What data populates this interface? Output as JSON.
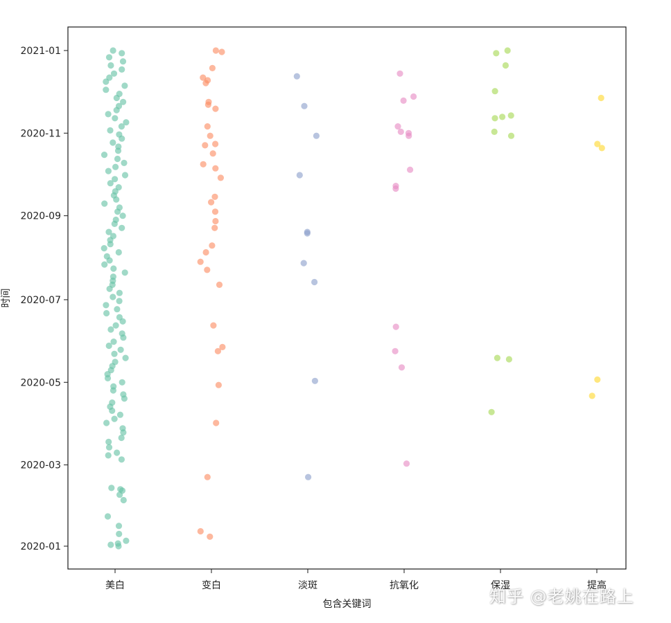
{
  "chart_data": {
    "type": "scatter",
    "subtype": "strip",
    "title": "",
    "xlabel": "包含关键词",
    "ylabel": "时间",
    "categories": [
      "美白",
      "变白",
      "淡斑",
      "抗氧化",
      "保湿",
      "提高"
    ],
    "colors": [
      "#66c2a5",
      "#fc8d62",
      "#8da0cb",
      "#e78ac3",
      "#a6d854",
      "#ffd92f"
    ],
    "y_axis": {
      "type": "date",
      "ticks": [
        "2020-01",
        "2020-03",
        "2020-05",
        "2020-07",
        "2020-09",
        "2020-11",
        "2021-01"
      ],
      "range": [
        "2019-12-15",
        "2021-01-24"
      ]
    },
    "grid": false,
    "legend": "none",
    "series": [
      {
        "category": "美白",
        "dates": [
          "2020-01-01",
          "2020-01-02",
          "2020-01-03",
          "2020-01-05",
          "2020-01-10",
          "2020-01-16",
          "2020-01-23",
          "2020-02-04",
          "2020-02-08",
          "2020-02-11",
          "2020-02-12",
          "2020-02-13",
          "2020-03-05",
          "2020-03-08",
          "2020-03-10",
          "2020-03-14",
          "2020-03-18",
          "2020-03-21",
          "2020-03-25",
          "2020-03-28",
          "2020-04-01",
          "2020-04-04",
          "2020-04-07",
          "2020-04-10",
          "2020-04-13",
          "2020-04-16",
          "2020-04-19",
          "2020-04-22",
          "2020-04-25",
          "2020-04-28",
          "2020-05-01",
          "2020-05-04",
          "2020-05-07",
          "2020-05-10",
          "2020-05-13",
          "2020-05-16",
          "2020-05-19",
          "2020-05-22",
          "2020-05-25",
          "2020-05-28",
          "2020-05-31",
          "2020-06-03",
          "2020-06-06",
          "2020-06-09",
          "2020-06-12",
          "2020-06-15",
          "2020-06-18",
          "2020-06-21",
          "2020-06-24",
          "2020-06-27",
          "2020-06-30",
          "2020-07-03",
          "2020-07-06",
          "2020-07-09",
          "2020-07-12",
          "2020-07-15",
          "2020-07-18",
          "2020-07-21",
          "2020-07-24",
          "2020-07-27",
          "2020-07-30",
          "2020-08-02",
          "2020-08-05",
          "2020-08-08",
          "2020-08-11",
          "2020-08-14",
          "2020-08-17",
          "2020-08-20",
          "2020-08-23",
          "2020-08-26",
          "2020-08-29",
          "2020-09-01",
          "2020-09-04",
          "2020-09-07",
          "2020-09-10",
          "2020-09-13",
          "2020-09-16",
          "2020-09-19",
          "2020-09-22",
          "2020-09-25",
          "2020-09-28",
          "2020-10-01",
          "2020-10-04",
          "2020-10-07",
          "2020-10-10",
          "2020-10-13",
          "2020-10-16",
          "2020-10-19",
          "2020-10-22",
          "2020-10-25",
          "2020-10-28",
          "2020-10-31",
          "2020-11-03",
          "2020-11-06",
          "2020-11-09",
          "2020-11-12",
          "2020-11-15",
          "2020-11-18",
          "2020-11-21",
          "2020-11-24",
          "2020-11-27",
          "2020-11-30",
          "2020-12-03",
          "2020-12-06",
          "2020-12-09",
          "2020-12-12",
          "2020-12-15",
          "2020-12-18",
          "2020-12-21",
          "2020-12-24",
          "2020-12-27",
          "2020-12-30",
          "2021-01-01"
        ]
      },
      {
        "category": "变白",
        "dates": [
          "2020-01-08",
          "2020-01-12",
          "2020-02-21",
          "2020-04-01",
          "2020-04-29",
          "2020-05-24",
          "2020-05-27",
          "2020-06-12",
          "2020-07-12",
          "2020-07-23",
          "2020-07-29",
          "2020-08-05",
          "2020-08-10",
          "2020-08-23",
          "2020-08-28",
          "2020-09-04",
          "2020-09-11",
          "2020-09-15",
          "2020-09-29",
          "2020-10-06",
          "2020-10-09",
          "2020-10-17",
          "2020-10-23",
          "2020-10-24",
          "2020-10-30",
          "2020-11-06",
          "2020-11-19",
          "2020-11-22",
          "2020-11-24",
          "2020-12-08",
          "2020-12-10",
          "2020-12-12",
          "2020-12-19",
          "2020-12-31",
          "2021-01-01"
        ]
      },
      {
        "category": "淡斑",
        "dates": [
          "2020-02-21",
          "2020-05-02",
          "2020-07-14",
          "2020-07-28",
          "2020-08-19",
          "2020-08-20",
          "2020-10-01",
          "2020-10-30",
          "2020-11-21",
          "2020-12-13"
        ]
      },
      {
        "category": "抗氧化",
        "dates": [
          "2020-03-02",
          "2020-05-12",
          "2020-05-24",
          "2020-06-11",
          "2020-09-21",
          "2020-09-23",
          "2020-10-05",
          "2020-10-30",
          "2020-11-01",
          "2020-11-02",
          "2020-11-06",
          "2020-11-25",
          "2020-11-28",
          "2020-12-15"
        ]
      },
      {
        "category": "保湿",
        "dates": [
          "2020-04-09",
          "2020-05-18",
          "2020-05-19",
          "2020-10-30",
          "2020-11-02",
          "2020-11-12",
          "2020-11-13",
          "2020-11-14",
          "2020-12-02",
          "2020-12-21",
          "2020-12-30",
          "2021-01-01"
        ]
      },
      {
        "category": "提高",
        "dates": [
          "2020-04-21",
          "2020-05-03",
          "2020-10-21",
          "2020-10-24",
          "2020-11-27"
        ]
      }
    ]
  },
  "watermark": "知乎 @老姚在路上"
}
